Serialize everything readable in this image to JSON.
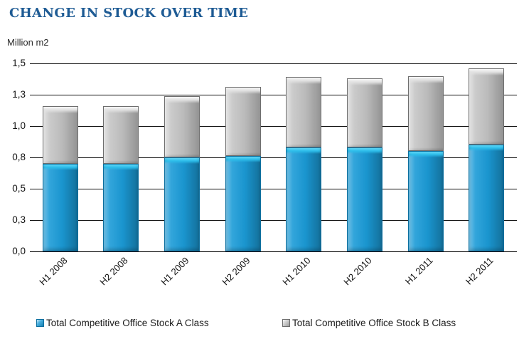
{
  "header": {
    "title": "CHANGE IN STOCK OVER TIME",
    "units_label": "Million m2"
  },
  "colors": {
    "title_text": "#1E5B94",
    "a_class_fill": "#1B9BD7",
    "a_class_border": "#0C6F9F",
    "b_class_fill": "#C2C2C2",
    "b_class_border": "#6E6E6E",
    "gridline": "#111111",
    "background": "#FFFFFF"
  },
  "chart_data": {
    "type": "bar",
    "stacked": true,
    "title": "CHANGE IN STOCK OVER TIME",
    "ylabel": "Million m2",
    "xlabel": "",
    "categories": [
      "H1 2008",
      "H2 2008",
      "H1 2009",
      "H2 2009",
      "H1 2010",
      "H2 2010",
      "H1 2011",
      "H2 2011"
    ],
    "series": [
      {
        "name": "Total Competitive Office Stock A Class",
        "color": "#1B9BD7",
        "values": [
          0.7,
          0.7,
          0.75,
          0.76,
          0.83,
          0.83,
          0.8,
          0.85
        ]
      },
      {
        "name": "Total Competitive Office Stock B Class",
        "color": "#C2C2C2",
        "values": [
          0.46,
          0.46,
          0.49,
          0.55,
          0.56,
          0.55,
          0.6,
          0.61
        ]
      }
    ],
    "stacked_totals": [
      1.16,
      1.16,
      1.24,
      1.31,
      1.39,
      1.38,
      1.4,
      1.46
    ],
    "ylim": [
      0,
      1.5
    ],
    "yticks": [
      {
        "value": 1.5,
        "label": "1,5"
      },
      {
        "value": 1.25,
        "label": "1,3"
      },
      {
        "value": 1.0,
        "label": "1,0"
      },
      {
        "value": 0.75,
        "label": "0,8"
      },
      {
        "value": 0.5,
        "label": "0,5"
      },
      {
        "value": 0.25,
        "label": "0,3"
      },
      {
        "value": 0.0,
        "label": "0,0"
      }
    ],
    "grid": true,
    "legend_position": "bottom",
    "x_tick_rotation_deg": 45
  },
  "legend": {
    "items": [
      {
        "label": "Total Competitive Office Stock A Class",
        "swatch": "a"
      },
      {
        "label": "Total Competitive Office Stock B Class",
        "swatch": "b"
      }
    ]
  }
}
